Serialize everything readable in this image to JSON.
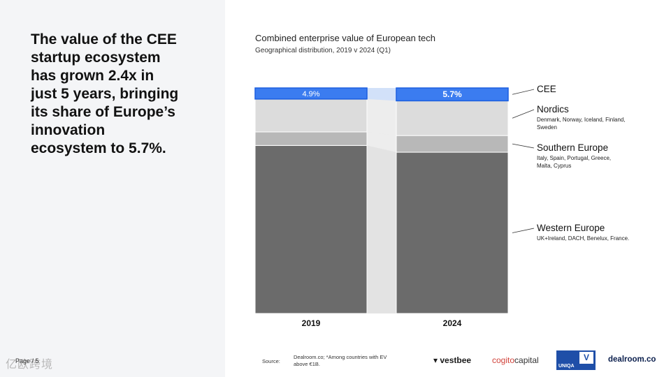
{
  "headline": "The value of the CEE\nstartup ecosystem\nhas grown 2.4x in\njust 5 years, bringing\nits share of Europe’s\ninnovation\necosystem to 5.7%.",
  "page_label": "Page / 5",
  "watermark": "亿欧跨境",
  "chart_data": {
    "type": "bar",
    "stacked": true,
    "normalized_percent": true,
    "title": "Combined enterprise value of European tech",
    "subtitle": "Geographical distribution, 2019 v 2024 (Q1)",
    "categories": [
      "2019",
      "2024"
    ],
    "ylim": [
      0,
      100
    ],
    "grid": false,
    "legend_placement": "right",
    "series": [
      {
        "name": "Western Europe",
        "note": "UK+Ireland, DACH, Benelux, France.",
        "color": "#6b6b6b",
        "values": [
          74.5,
          71.5
        ]
      },
      {
        "name": "Southern Europe",
        "note": "Italy, Spain, Portugal, Greece, Malta, Cyprus",
        "color": "#b8b8b8",
        "values": [
          6.0,
          7.4
        ]
      },
      {
        "name": "Nordics",
        "note": "Denmark, Norway, Iceland, Finland, Sweden",
        "color": "#dcdcdc",
        "values": [
          14.6,
          15.4
        ]
      },
      {
        "name": "CEE",
        "note": "",
        "color": "#3b7cf0",
        "values": [
          4.9,
          5.7
        ]
      }
    ],
    "data_labels": [
      "4.9%",
      "5.7%"
    ]
  },
  "footer": {
    "source_label": "Source:",
    "source_text": "Dealroom.co; *Among countries with EV above €1B."
  },
  "logos": {
    "vestbee": "vestbee",
    "cogito_a": "cogito",
    "cogito_b": "capital",
    "uniqa": "UNIQA",
    "uniqa_v": "V",
    "dealroom": "dealroom.co"
  }
}
